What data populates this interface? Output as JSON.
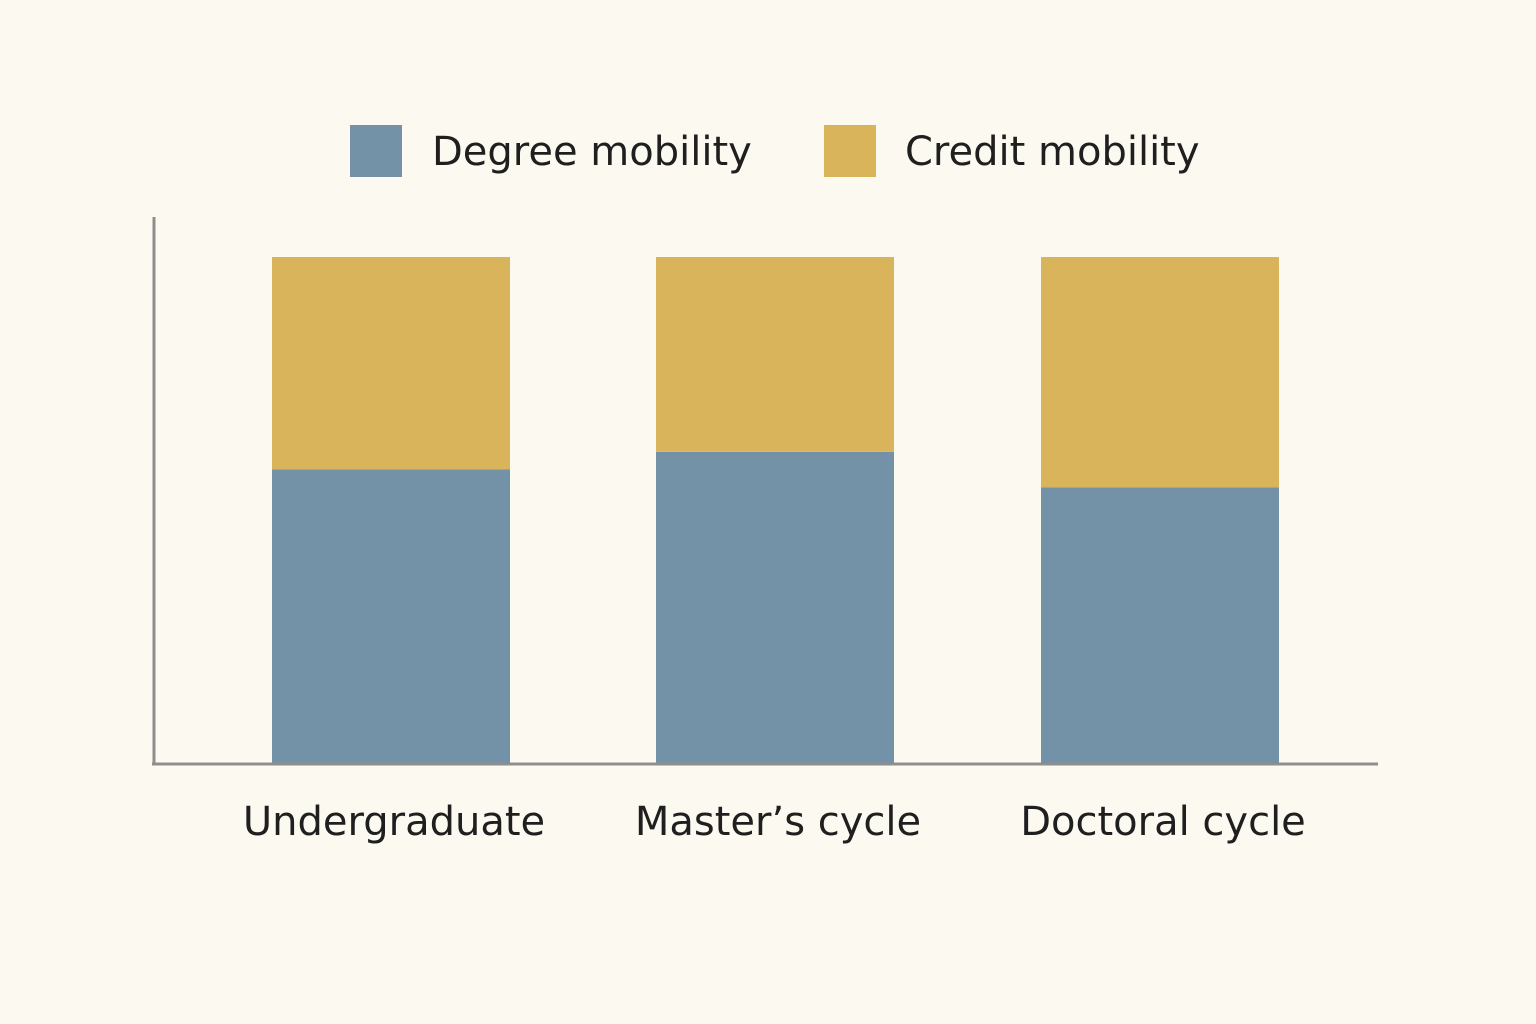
{
  "chart_data": {
    "type": "bar",
    "stacked": true,
    "title": "",
    "xlabel": "",
    "ylabel": "",
    "categories": [
      "Undergraduate",
      "Master’s cycle",
      "Doctoral cycle"
    ],
    "series": [
      {
        "name": "Degree mobility",
        "color": "#7392a8",
        "values": [
          58,
          61.5,
          54.5
        ]
      },
      {
        "name": "Credit mobility",
        "color": "#dab45a",
        "values": [
          42,
          38.5,
          45.5
        ]
      }
    ],
    "ylim": [
      0,
      107
    ],
    "grid": false,
    "legend": "top-center",
    "y_ticks_shown": false
  }
}
